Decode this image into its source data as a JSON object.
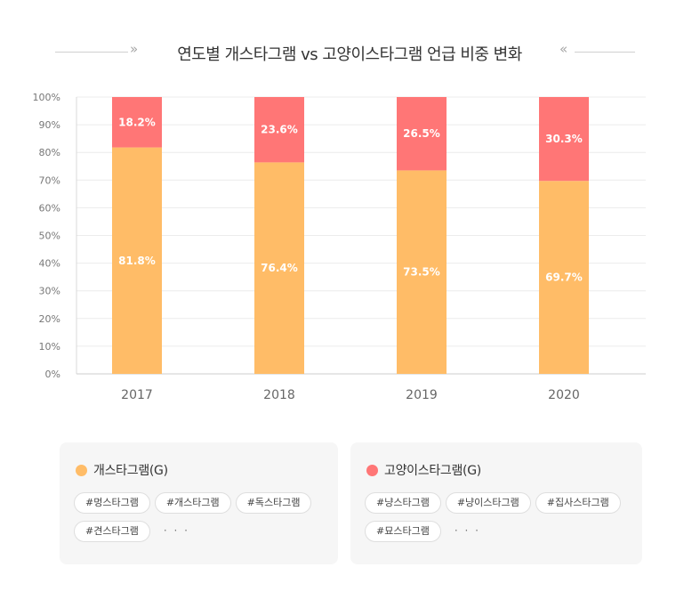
{
  "title": "연도별 개스타그램 vs 고양이스타그램 언급 비중 변화",
  "decor": {
    "left_arrow": "»",
    "right_arrow": "«"
  },
  "colors": {
    "dog": "#FFBC67",
    "cat": "#FF7676",
    "grid": "#ececec",
    "axis_text": "#777777"
  },
  "chart_data": {
    "type": "bar",
    "stacked": true,
    "categories": [
      "2017",
      "2018",
      "2019",
      "2020"
    ],
    "series": [
      {
        "name": "개스타그램(G)",
        "values": [
          81.8,
          76.4,
          73.5,
          69.7
        ],
        "labels": [
          "81.8%",
          "76.4%",
          "73.5%",
          "69.7%"
        ]
      },
      {
        "name": "고양이스타그램(G)",
        "values": [
          18.2,
          23.6,
          26.5,
          30.3
        ],
        "labels": [
          "18.2%",
          "23.6%",
          "26.5%",
          "30.3%"
        ]
      }
    ],
    "ylim": [
      0,
      100
    ],
    "yticks": [
      "0%",
      "10%",
      "20%",
      "30%",
      "40%",
      "50%",
      "60%",
      "70%",
      "80%",
      "90%",
      "100%"
    ],
    "grid": true,
    "legend_position": "bottom"
  },
  "legend": {
    "dog": {
      "name": "개스타그램(G)",
      "tags": [
        "#멍스타그램",
        "#개스타그램",
        "#독스타그램",
        "#견스타그램"
      ],
      "more": "· · ·"
    },
    "cat": {
      "name": "고양이스타그램(G)",
      "tags": [
        "#냥스타그램",
        "#냥이스타그램",
        "#집사스타그램",
        "#묘스타그램"
      ],
      "more": "· · ·"
    }
  }
}
